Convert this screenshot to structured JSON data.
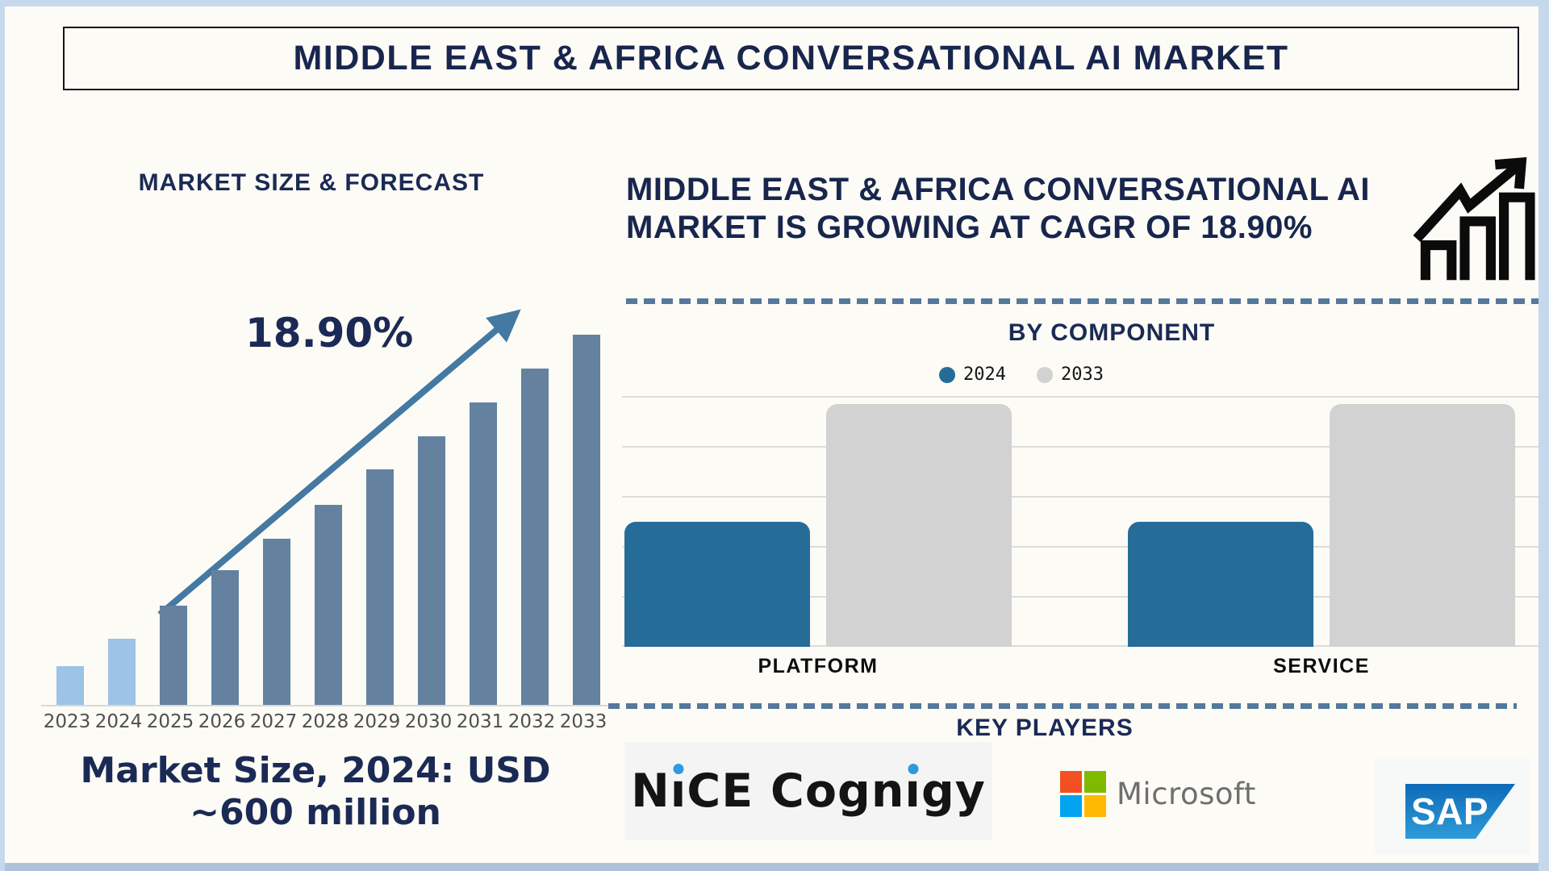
{
  "page": {
    "background": "#FCFBF5",
    "border_color": "#C6D9EC",
    "bottom_bar_color": "#AEC2D9",
    "accent_navy": "#18264E"
  },
  "title": {
    "text": "MIDDLE EAST & AFRICA CONVERSATIONAL AI MARKET"
  },
  "left_panel": {
    "heading": "MARKET SIZE & FORECAST",
    "cagr_label": "18.90%",
    "note_line1": "Market Size, 2024: USD",
    "note_line2": "~600 million"
  },
  "right_panel": {
    "heading": "MIDDLE EAST & AFRICA CONVERSATIONAL AI MARKET IS GROWING AT CAGR OF 18.90%",
    "component_heading": "BY COMPONENT",
    "key_players_heading": "KEY PLAYERS",
    "divider_color": "#54799B",
    "logos": {
      "nice_cognigy": "NiCE Cognigy",
      "microsoft": "Microsoft",
      "sap": "SAP",
      "microsoft_square_colors": [
        "#F25022",
        "#7FBA00",
        "#00A4EF",
        "#FFB900"
      ],
      "microsoft_text_color": "#6F6F6F",
      "logo_dot_color": "#2D9BE0",
      "sap_blue_top": "#0E6BB8",
      "sap_blue_bottom": "#2F9BD8"
    }
  },
  "chart_data": [
    {
      "type": "bar",
      "title": "MARKET SIZE & FORECAST",
      "categories": [
        "2023",
        "2024",
        "2025",
        "2026",
        "2027",
        "2028",
        "2029",
        "2030",
        "2031",
        "2032",
        "2033"
      ],
      "values_approx_usd_million": [
        350,
        600,
        900,
        1220,
        1510,
        1815,
        2135,
        2440,
        2745,
        3050,
        3360
      ],
      "height_pct": [
        10.5,
        17.9,
        26.8,
        36.4,
        44.9,
        54.0,
        63.6,
        72.5,
        81.7,
        90.8,
        100
      ],
      "annotation": "18.90%",
      "bar_color": "#64829F",
      "highlight_color": "#9DC3E6",
      "highlight_first_n": 2,
      "arrow_color": "#4379A2",
      "xlabel": "",
      "ylabel": "",
      "grid": false,
      "tick_label_color": "#4F4F4F"
    },
    {
      "type": "bar",
      "title": "BY COMPONENT",
      "categories": [
        "PLATFORM",
        "SERVICE"
      ],
      "series": [
        {
          "name": "2024",
          "color": "#266C99",
          "height_pct": [
            50,
            50
          ]
        },
        {
          "name": "2033",
          "color": "#D2D2D2",
          "height_pct": [
            97,
            97
          ]
        }
      ],
      "grid": true,
      "gridline_count": 6,
      "gridline_color": "#DCDCDC",
      "legend_position": "top",
      "xlabel": "",
      "ylabel": ""
    }
  ]
}
